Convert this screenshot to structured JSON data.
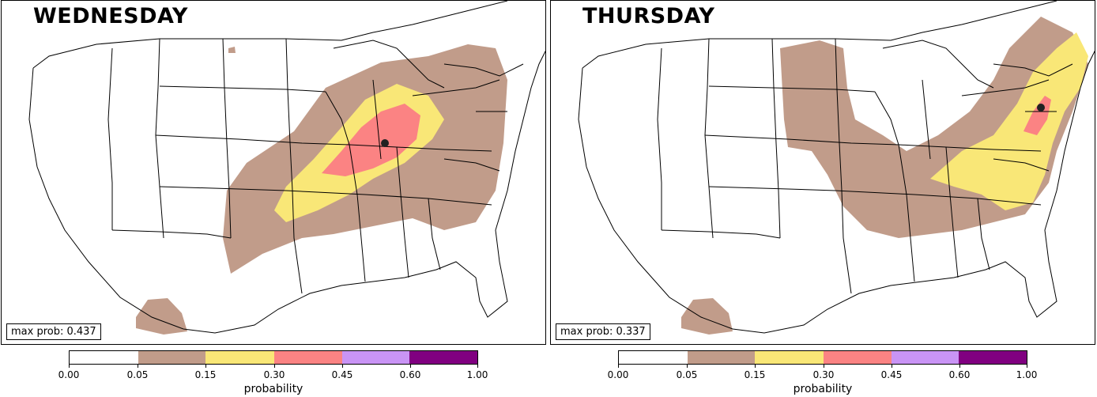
{
  "panels": [
    {
      "title": "WEDNESDAY",
      "max_prob": "max prob: 0.437",
      "max_prob_value": 0.437
    },
    {
      "title": "THURSDAY",
      "max_prob": "max prob: 0.337",
      "max_prob_value": 0.337
    }
  ],
  "colorbar": {
    "label": "probability",
    "ticks": [
      "0.00",
      "0.05",
      "0.15",
      "0.30",
      "0.45",
      "0.60",
      "1.00"
    ],
    "colors": [
      "#ffffff",
      "#c19c8a",
      "#f9e777",
      "#fb8383",
      "#c994f5",
      "#800080"
    ]
  }
}
